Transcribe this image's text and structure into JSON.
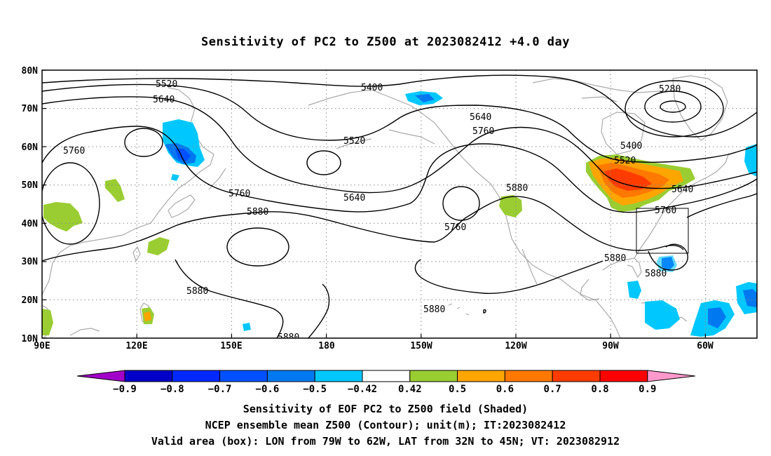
{
  "title": "Sensitivity of PC2 to Z500 at 2023082412 +4.0 day",
  "map": {
    "lat_labels": [
      "80N",
      "70N",
      "60N",
      "50N",
      "40N",
      "30N",
      "20N",
      "10N"
    ],
    "lon_labels": [
      "90E",
      "120E",
      "150E",
      "180",
      "150W",
      "120W",
      "90W",
      "60W"
    ],
    "extent": {
      "lon_min": "90E",
      "lon_max": "40W",
      "lat_min": "10N",
      "lat_max": "80N"
    },
    "grid": "dotted",
    "contour_labels": [
      "5520",
      "5640",
      "5760",
      "5400",
      "5520",
      "5640",
      "5760",
      "5880",
      "5760",
      "5880",
      "5640",
      "5760",
      "5880",
      "5880",
      "5280",
      "5400",
      "5520",
      "5640",
      "5760",
      "5880",
      "5880",
      "5880"
    ],
    "valid_box": {
      "lon": "79W to 62W",
      "lat": "32N to 45N"
    },
    "colors": {
      "coast": "#aaaaaa",
      "contour": "#000000"
    }
  },
  "colorbar": {
    "labels": [
      "−0.9",
      "−0.8",
      "−0.7",
      "−0.6",
      "−0.5",
      "−0.42",
      "0.42",
      "0.5",
      "0.6",
      "0.7",
      "0.8",
      "0.9"
    ],
    "colors": [
      "#a000c8",
      "#0000c8",
      "#0028ff",
      "#0050ff",
      "#0078f0",
      "#00c8ff",
      "#ffffff",
      "#9acd32",
      "#ffa500",
      "#ff7800",
      "#ff3c00",
      "#ff0000",
      "#ff99cc"
    ]
  },
  "captions": {
    "line1": "Sensitivity of EOF PC2 to Z500 field (Shaded)",
    "line2": "NCEP ensemble mean Z500 (Contour); unit(m); IT:2023082412",
    "line3": "Valid area (box): LON from 79W to 62W, LAT from 32N to 45N; VT: 2023082912"
  }
}
